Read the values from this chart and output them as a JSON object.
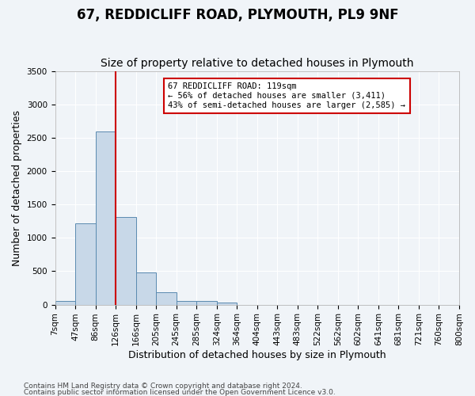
{
  "title": "67, REDDICLIFF ROAD, PLYMOUTH, PL9 9NF",
  "subtitle": "Size of property relative to detached houses in Plymouth",
  "xlabel": "Distribution of detached houses by size in Plymouth",
  "ylabel": "Number of detached properties",
  "footer_line1": "Contains HM Land Registry data © Crown copyright and database right 2024.",
  "footer_line2": "Contains public sector information licensed under the Open Government Licence v3.0.",
  "bin_labels": [
    "7sqm",
    "47sqm",
    "86sqm",
    "126sqm",
    "166sqm",
    "205sqm",
    "245sqm",
    "285sqm",
    "324sqm",
    "364sqm",
    "404sqm",
    "443sqm",
    "483sqm",
    "522sqm",
    "562sqm",
    "602sqm",
    "641sqm",
    "681sqm",
    "721sqm",
    "760sqm",
    "800sqm"
  ],
  "bar_values": [
    50,
    1220,
    2590,
    1310,
    480,
    185,
    60,
    50,
    30,
    0,
    0,
    0,
    0,
    0,
    0,
    0,
    0,
    0,
    0,
    0
  ],
  "bar_color": "#c8d8e8",
  "bar_edge_color": "#5a8ab0",
  "ylim": [
    0,
    3500
  ],
  "yticks": [
    0,
    500,
    1000,
    1500,
    2000,
    2500,
    3000,
    3500
  ],
  "property_line_x": 3,
  "property_line_color": "#cc0000",
  "annotation_text": "67 REDDICLIFF ROAD: 119sqm\n← 56% of detached houses are smaller (3,411)\n43% of semi-detached houses are larger (2,585) →",
  "annotation_box_color": "#cc0000",
  "background_color": "#f0f4f8",
  "plot_bg_color": "#f0f4f8",
  "grid_color": "#ffffff",
  "title_fontsize": 12,
  "subtitle_fontsize": 10,
  "axis_label_fontsize": 9,
  "tick_fontsize": 7.5
}
